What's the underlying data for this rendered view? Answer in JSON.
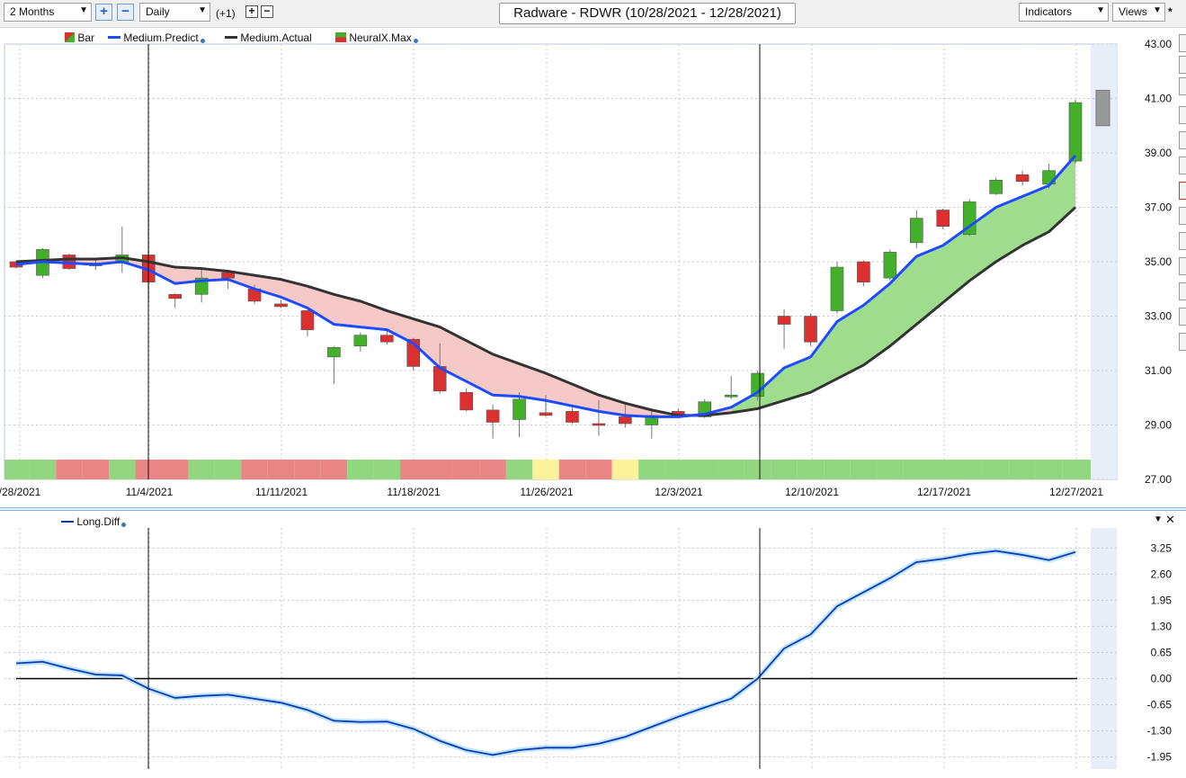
{
  "toolbar": {
    "range": "2 Months",
    "interval": "Daily",
    "offset": "(+1)",
    "title": "Radware - RDWR (10/28/2021 - 12/28/2021)",
    "indicators": "Indicators",
    "views": "Views",
    "views_star": "*"
  },
  "colors": {
    "up": "#43b02a",
    "down": "#dc3030",
    "predict": "#1e4bff",
    "actual": "#333333",
    "diff_line": "#0b3bb0",
    "pos_fill": "#9fdc8e",
    "neg_fill": "#f6c9c9"
  },
  "legend_top": [
    {
      "label": "Bar",
      "icon": "bar-swatch-icon"
    },
    {
      "label": "Medium.Predict",
      "icon": "blue-line-icon"
    },
    {
      "label": "Medium.Actual",
      "icon": "black-line-icon"
    },
    {
      "label": "NeuralX.Max",
      "icon": "neuralx-swatch-icon"
    }
  ],
  "legend_bottom": {
    "label": "Long.Diff"
  },
  "chart_data": [
    {
      "type": "candlestick",
      "title": "Radware - RDWR (10/28/2021 - 12/28/2021)",
      "ylim": [
        27,
        43
      ],
      "y_ticks": [
        "43.00",
        "41.00",
        "39.00",
        "37.00",
        "35.00",
        "33.00",
        "31.00",
        "29.00",
        "27.00"
      ],
      "x_tick_labels": [
        "/28/2021",
        "11/4/2021",
        "11/11/2021",
        "11/18/2021",
        "11/26/2021",
        "12/3/2021",
        "12/10/2021",
        "12/17/2021",
        "12/27/2021"
      ],
      "grid": true,
      "candles": [
        {
          "date": "10/28",
          "o": 35.0,
          "h": 35.05,
          "l": 34.75,
          "c": 34.8
        },
        {
          "date": "10/29",
          "o": 34.5,
          "h": 35.5,
          "l": 34.4,
          "c": 35.45
        },
        {
          "date": "11/1",
          "o": 35.25,
          "h": 35.3,
          "l": 34.7,
          "c": 34.75
        },
        {
          "date": "11/2",
          "o": 34.85,
          "h": 35.1,
          "l": 34.7,
          "c": 34.95
        },
        {
          "date": "11/3",
          "o": 34.95,
          "h": 36.3,
          "l": 34.6,
          "c": 35.25
        },
        {
          "date": "11/4",
          "o": 35.25,
          "h": 36.8,
          "l": 33.5,
          "c": 34.25
        },
        {
          "date": "11/5",
          "o": 33.8,
          "h": 33.85,
          "l": 33.3,
          "c": 33.65
        },
        {
          "date": "11/8",
          "o": 33.8,
          "h": 34.7,
          "l": 33.5,
          "c": 34.4
        },
        {
          "date": "11/9",
          "o": 34.6,
          "h": 34.7,
          "l": 34.0,
          "c": 34.4
        },
        {
          "date": "11/10",
          "o": 34.0,
          "h": 34.15,
          "l": 33.45,
          "c": 33.55
        },
        {
          "date": "11/11",
          "o": 33.45,
          "h": 33.6,
          "l": 33.3,
          "c": 33.35
        },
        {
          "date": "11/12",
          "o": 33.2,
          "h": 33.3,
          "l": 32.25,
          "c": 32.5
        },
        {
          "date": "11/15",
          "o": 31.5,
          "h": 31.9,
          "l": 30.5,
          "c": 31.85
        },
        {
          "date": "11/16",
          "o": 31.9,
          "h": 32.4,
          "l": 31.7,
          "c": 32.3
        },
        {
          "date": "11/17",
          "o": 32.3,
          "h": 32.5,
          "l": 31.95,
          "c": 32.05
        },
        {
          "date": "11/18",
          "o": 32.15,
          "h": 32.2,
          "l": 31.0,
          "c": 31.15
        },
        {
          "date": "11/19",
          "o": 31.15,
          "h": 32.0,
          "l": 30.15,
          "c": 30.25
        },
        {
          "date": "11/22",
          "o": 30.2,
          "h": 30.35,
          "l": 29.5,
          "c": 29.55
        },
        {
          "date": "11/23",
          "o": 29.55,
          "h": 29.75,
          "l": 28.5,
          "c": 29.1
        },
        {
          "date": "11/24",
          "o": 29.2,
          "h": 30.2,
          "l": 28.55,
          "c": 29.95
        },
        {
          "date": "11/26",
          "o": 29.45,
          "h": 30.1,
          "l": 29.3,
          "c": 29.35
        },
        {
          "date": "11/29",
          "o": 29.5,
          "h": 29.75,
          "l": 29.05,
          "c": 29.1
        },
        {
          "date": "11/30",
          "o": 29.05,
          "h": 29.9,
          "l": 28.6,
          "c": 29.0
        },
        {
          "date": "12/1",
          "o": 29.3,
          "h": 29.8,
          "l": 28.9,
          "c": 29.05
        },
        {
          "date": "12/2",
          "o": 29.0,
          "h": 29.55,
          "l": 28.5,
          "c": 29.35
        },
        {
          "date": "12/3",
          "o": 29.5,
          "h": 29.6,
          "l": 29.25,
          "c": 29.3
        },
        {
          "date": "12/6",
          "o": 29.3,
          "h": 29.95,
          "l": 29.25,
          "c": 29.85
        },
        {
          "date": "12/7",
          "o": 30.05,
          "h": 30.8,
          "l": 29.95,
          "c": 30.1
        },
        {
          "date": "12/8",
          "o": 30.05,
          "h": 31.0,
          "l": 29.9,
          "c": 30.9
        },
        {
          "date": "12/9",
          "o": 33.0,
          "h": 33.25,
          "l": 31.8,
          "c": 32.7
        },
        {
          "date": "12/10",
          "o": 33.0,
          "h": 33.1,
          "l": 31.9,
          "c": 32.05
        },
        {
          "date": "12/13",
          "o": 33.2,
          "h": 35.0,
          "l": 33.1,
          "c": 34.8
        },
        {
          "date": "12/14",
          "o": 35.0,
          "h": 35.05,
          "l": 34.1,
          "c": 34.25
        },
        {
          "date": "12/15",
          "o": 34.4,
          "h": 35.45,
          "l": 34.3,
          "c": 35.35
        },
        {
          "date": "12/16",
          "o": 35.7,
          "h": 36.9,
          "l": 35.5,
          "c": 36.6
        },
        {
          "date": "12/17",
          "o": 36.9,
          "h": 36.95,
          "l": 36.2,
          "c": 36.3
        },
        {
          "date": "12/20",
          "o": 36.0,
          "h": 37.3,
          "l": 35.95,
          "c": 37.2
        },
        {
          "date": "12/21",
          "o": 37.5,
          "h": 38.1,
          "l": 37.45,
          "c": 38.0
        },
        {
          "date": "12/22",
          "o": 38.2,
          "h": 38.35,
          "l": 37.8,
          "c": 37.95
        },
        {
          "date": "12/23",
          "o": 37.85,
          "h": 38.6,
          "l": 37.7,
          "c": 38.35
        },
        {
          "date": "12/27",
          "o": 38.7,
          "h": 40.95,
          "l": 38.6,
          "c": 40.85
        }
      ],
      "projection_bar": {
        "high": 41.3,
        "low": 40.0
      },
      "series": [
        {
          "name": "Medium.Predict",
          "values": [
            34.9,
            35.0,
            34.95,
            34.9,
            35.0,
            34.7,
            34.2,
            34.3,
            34.35,
            34.0,
            33.7,
            33.3,
            32.7,
            32.6,
            32.5,
            32.0,
            31.1,
            30.6,
            30.1,
            30.05,
            29.9,
            29.7,
            29.5,
            29.35,
            29.3,
            29.3,
            29.4,
            29.65,
            30.2,
            31.1,
            31.5,
            32.8,
            33.4,
            34.2,
            35.2,
            35.6,
            36.3,
            37.0,
            37.4,
            37.8,
            38.9
          ]
        },
        {
          "name": "Medium.Actual",
          "values": [
            35.0,
            35.05,
            35.1,
            35.1,
            35.15,
            35.0,
            34.8,
            34.75,
            34.65,
            34.5,
            34.35,
            34.1,
            33.8,
            33.55,
            33.2,
            32.9,
            32.6,
            32.1,
            31.6,
            31.25,
            30.9,
            30.5,
            30.1,
            29.8,
            29.55,
            29.35,
            29.35,
            29.45,
            29.6,
            29.9,
            30.2,
            30.7,
            31.2,
            31.9,
            32.7,
            33.5,
            34.3,
            35.0,
            35.6,
            36.1,
            37.0
          ]
        }
      ],
      "regime_strip": [
        "green",
        "green",
        "red",
        "red",
        "green",
        "red",
        "red",
        "green",
        "green",
        "red",
        "red",
        "red",
        "red",
        "green",
        "green",
        "red",
        "red",
        "red",
        "red",
        "green",
        "yellow",
        "red",
        "red",
        "yellow",
        "green",
        "green",
        "green",
        "green",
        "green",
        "green",
        "green",
        "green",
        "green",
        "green",
        "green",
        "green",
        "green",
        "green",
        "green",
        "green",
        "green"
      ]
    },
    {
      "type": "line",
      "series": [
        {
          "name": "Long.Diff",
          "values": [
            0.38,
            0.42,
            0.25,
            0.1,
            0.08,
            -0.25,
            -0.48,
            -0.43,
            -0.4,
            -0.5,
            -0.6,
            -0.78,
            -1.05,
            -1.08,
            -1.07,
            -1.25,
            -1.55,
            -1.78,
            -1.9,
            -1.78,
            -1.72,
            -1.72,
            -1.62,
            -1.45,
            -1.2,
            -0.95,
            -0.72,
            -0.5,
            0.0,
            0.75,
            1.1,
            1.8,
            2.15,
            2.5,
            2.9,
            2.98,
            3.1,
            3.18,
            3.08,
            2.95,
            3.15
          ]
        }
      ],
      "ylim": [
        -2.25,
        3.75
      ],
      "y_ticks": [
        "3.25",
        "2.60",
        "1.95",
        "1.30",
        "0.65",
        "0.00",
        "-0.65",
        "-1.30",
        "-1.95"
      ],
      "grid": true
    }
  ]
}
